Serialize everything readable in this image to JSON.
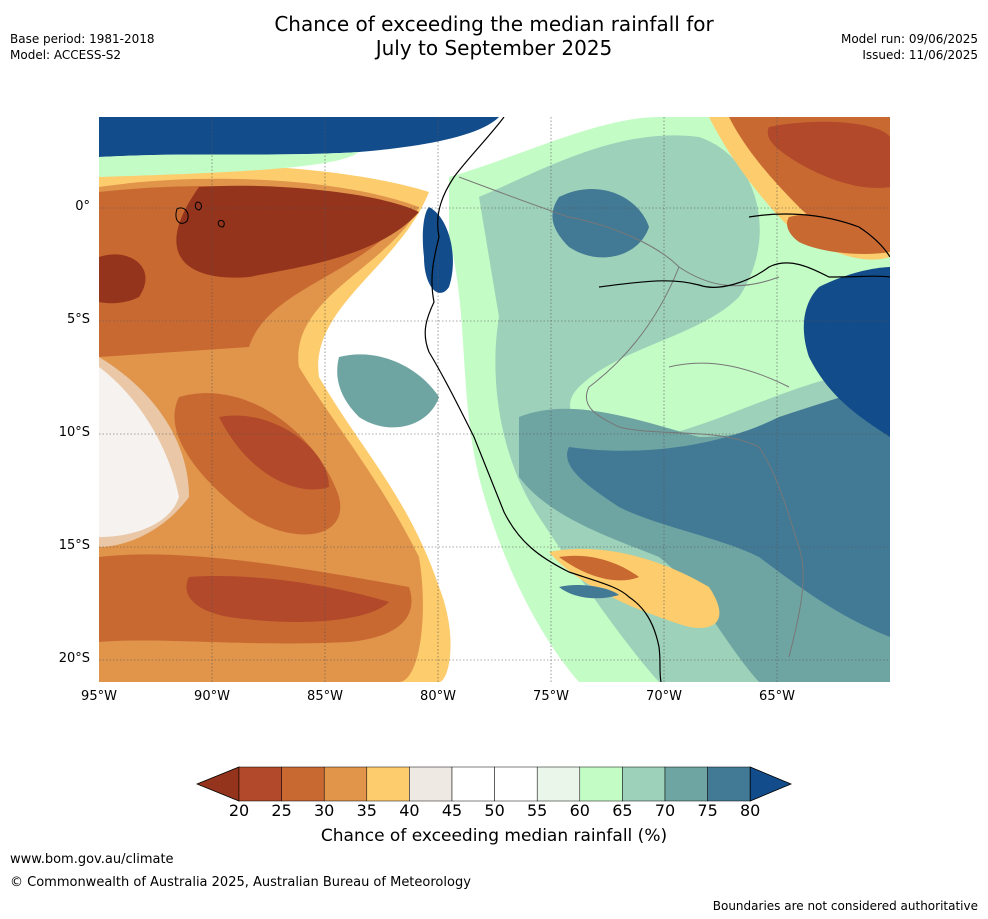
{
  "header": {
    "title_line1": "Chance of exceeding the median rainfall for",
    "title_line2": "July to September 2025",
    "base_period": "Base period: 1981-2018",
    "model": "Model: ACCESS-S2",
    "model_run": "Model run: 09/06/2025",
    "issued": "Issued: 11/06/2025"
  },
  "map": {
    "lat_labels": [
      "0°",
      "5°S",
      "10°S",
      "15°S",
      "20°S"
    ],
    "lon_labels": [
      "95°W",
      "90°W",
      "85°W",
      "80°W",
      "75°W",
      "70°W",
      "65°W"
    ]
  },
  "legend": {
    "ticks": [
      "20",
      "25",
      "30",
      "35",
      "40",
      "45",
      "50",
      "55",
      "60",
      "65",
      "70",
      "75",
      "80"
    ],
    "colors": [
      "#95341c",
      "#b1492a",
      "#c96932",
      "#e0954b",
      "#fdcc6d",
      "#efe9e4",
      "#ffffff",
      "#ffffff",
      "#e9f6e9",
      "#c4fcc6",
      "#9dd1b9",
      "#6ea5a3",
      "#427a96",
      "#134c8a"
    ],
    "label": "Chance of exceeding median rainfall (%)"
  },
  "footer": {
    "url": "www.bom.gov.au/climate",
    "copyright": "© Commonwealth of Australia 2025, Australian Bureau of Meteorology",
    "note": "Boundaries are not considered authoritative"
  }
}
